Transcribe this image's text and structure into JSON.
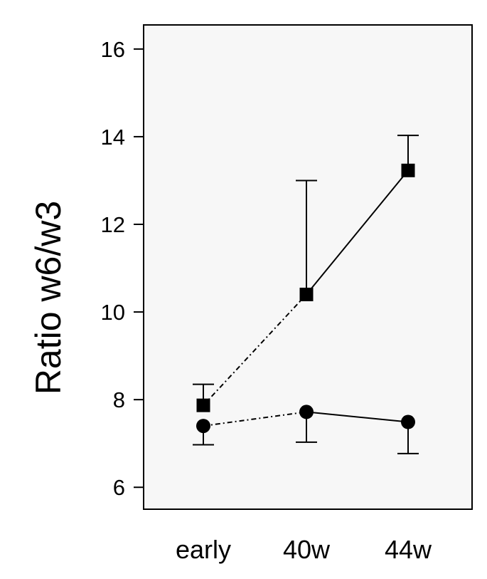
{
  "chart_data": {
    "type": "line",
    "title": "",
    "xlabel": "",
    "ylabel": "Ratio w6/w3",
    "categories": [
      "early",
      "40w",
      "44w"
    ],
    "ylim": [
      5.5,
      16.55
    ],
    "yticks": [
      6,
      8,
      10,
      12,
      14,
      16
    ],
    "grid": false,
    "legend": "none",
    "plot_background": "#f7f7f7",
    "series": [
      {
        "marker": "square",
        "values": [
          7.87,
          10.4,
          13.23
        ],
        "error_bars": [
          {
            "direction": "up",
            "value": 8.35
          },
          {
            "direction": "up",
            "value": 13.0
          },
          {
            "direction": "up",
            "value": 14.03
          }
        ],
        "segment_styles": [
          "dash-dot",
          "solid"
        ]
      },
      {
        "marker": "circle",
        "values": [
          7.4,
          7.72,
          7.49
        ],
        "error_bars": [
          {
            "direction": "down",
            "value": 6.97
          },
          {
            "direction": "down",
            "value": 7.03
          },
          {
            "direction": "down",
            "value": 6.77
          }
        ],
        "segment_styles": [
          "dash-dot",
          "solid"
        ]
      }
    ]
  }
}
